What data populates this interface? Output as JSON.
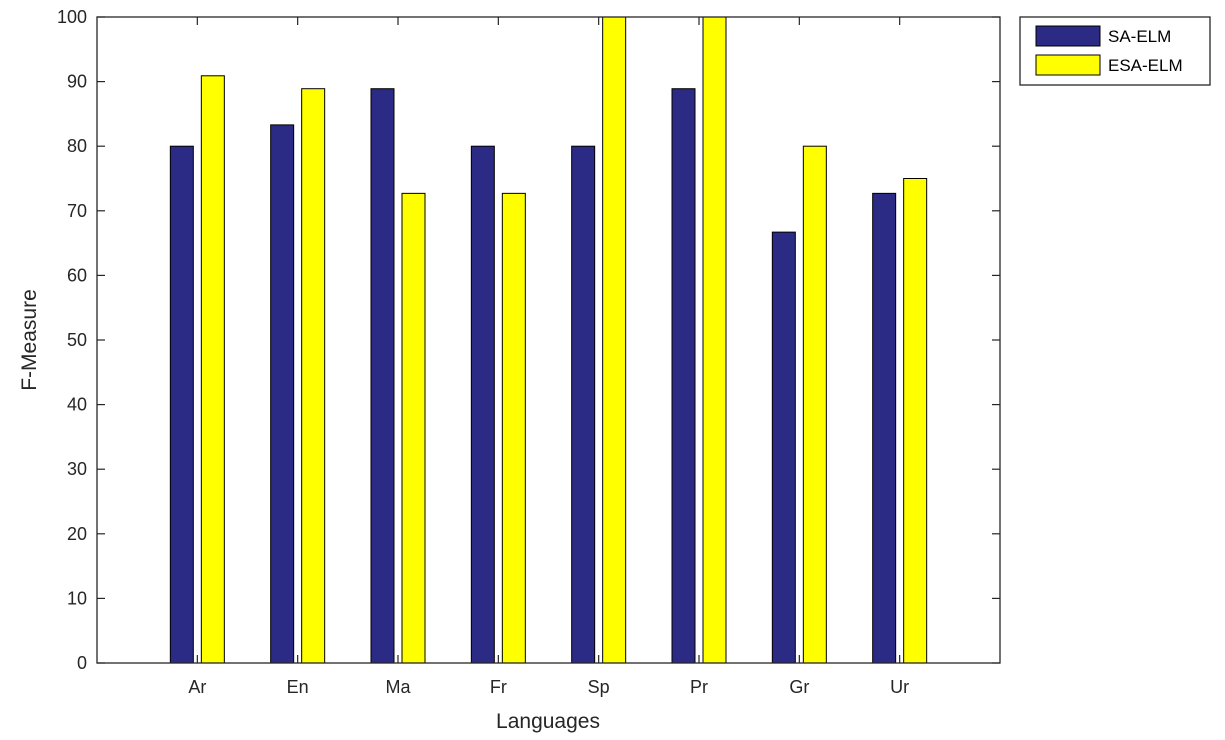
{
  "chart_data": {
    "type": "bar",
    "categories": [
      "Ar",
      "En",
      "Ma",
      "Fr",
      "Sp",
      "Pr",
      "Gr",
      "Ur"
    ],
    "series": [
      {
        "name": "SA-ELM",
        "color": "#2b2a84",
        "values": [
          80,
          83.3,
          88.9,
          80,
          80,
          88.9,
          66.7,
          72.7
        ]
      },
      {
        "name": "ESA-ELM",
        "color": "#ffff00",
        "values": [
          90.9,
          88.9,
          72.7,
          72.7,
          100,
          100,
          80,
          75
        ]
      }
    ],
    "title": "",
    "xlabel": "Languages",
    "ylabel": "F-Measure",
    "ylim": [
      0,
      100
    ],
    "yticks": [
      0,
      10,
      20,
      30,
      40,
      50,
      60,
      70,
      80,
      90,
      100
    ],
    "grid": false,
    "legend": "outside-top-right"
  }
}
